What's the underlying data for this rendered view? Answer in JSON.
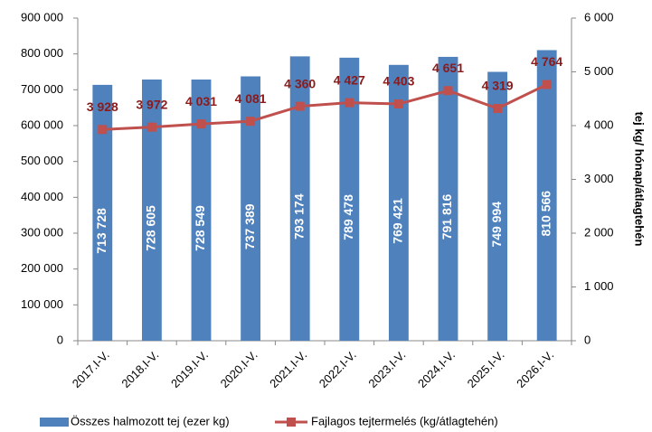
{
  "chart_data": {
    "type": "bar_line",
    "categories": [
      "2017.I-V.",
      "2018.I-V.",
      "2019.I-V.",
      "2020.I-V.",
      "2021.I-V.",
      "2022.I-V.",
      "2023.I-V.",
      "2024.I-V.",
      "2025.I-V.",
      "2026.I-V."
    ],
    "series": [
      {
        "name": "Összes halmozott tej (ezer kg)",
        "type": "bar",
        "color": "#4f81bd",
        "values": [
          713728,
          728605,
          728549,
          737389,
          793174,
          789478,
          769421,
          791816,
          749994,
          810566
        ],
        "value_labels": [
          "713 728",
          "728 605",
          "728 549",
          "737 389",
          "793 174",
          "789 478",
          "769 421",
          "791 816",
          "749 994",
          "810 566"
        ]
      },
      {
        "name": "Fajlagos tejtermelés (kg/átlagtehén)",
        "type": "line",
        "axis": "y2",
        "color": "#c0504d",
        "label_color": "#8b1a1a",
        "values": [
          3928,
          3972,
          4031,
          4081,
          4360,
          4427,
          4403,
          4651,
          4319,
          4764
        ],
        "value_labels": [
          "3 928",
          "3 972",
          "4 031",
          "4 081",
          "4 360",
          "4 427",
          "4 403",
          "4 651",
          "4 319",
          "4 764"
        ]
      }
    ],
    "ylim": [
      0,
      900000
    ],
    "yticks": [
      0,
      {
        "value": 100000,
        "label": "100 000"
      },
      {
        "value": 200000,
        "label": "200 000"
      },
      {
        "value": 300000,
        "label": "300 000"
      },
      {
        "value": 400000,
        "label": "400 000"
      },
      {
        "value": 500000,
        "label": "500 000"
      },
      {
        "value": 600000,
        "label": "600 000"
      },
      {
        "value": 700000,
        "label": "700 000"
      },
      {
        "value": 800000,
        "label": "800 000"
      },
      {
        "value": 900000,
        "label": "900 000"
      }
    ],
    "y2lim": [
      0,
      6000
    ],
    "y2ticks": [
      0,
      {
        "value": 1000,
        "label": "1 000"
      },
      {
        "value": 2000,
        "label": "2 000"
      },
      {
        "value": 3000,
        "label": "3 000"
      },
      {
        "value": 4000,
        "label": "4 000"
      },
      {
        "value": 5000,
        "label": "5 000"
      },
      {
        "value": 6000,
        "label": "6 000"
      }
    ],
    "y2label": "tej kg/ hónap/átlagtehén",
    "legend": "bottom"
  }
}
